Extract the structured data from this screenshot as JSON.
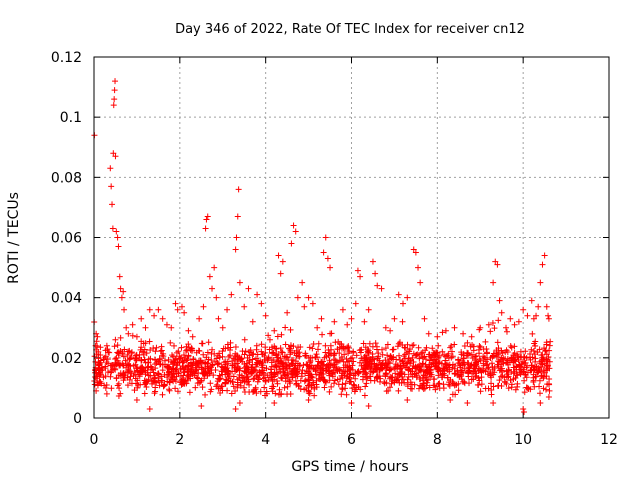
{
  "chart_data": {
    "type": "scatter",
    "title": "Day 346 of 2022, Rate Of TEC Index for receiver cn12",
    "xlabel": "GPS time / hours",
    "ylabel": "ROTI / TECUs",
    "xlim": [
      0,
      12
    ],
    "ylim": [
      0,
      0.12
    ],
    "xticks": [
      0,
      2,
      4,
      6,
      8,
      10,
      12
    ],
    "xtick_labels": [
      "0",
      "2",
      "4",
      "6",
      "8",
      "10",
      "12"
    ],
    "yticks": [
      0,
      0.02,
      0.04,
      0.06,
      0.08,
      0.1,
      0.12
    ],
    "ytick_labels": [
      "0",
      "0.02",
      "0.04",
      "0.06",
      "0.08",
      "0.1",
      "0.12"
    ],
    "grid": true,
    "marker": "+",
    "series": [
      {
        "name": "ROTI",
        "color": "#ff0000",
        "points": [
          [
            0.01,
            0.094
          ],
          [
            0.05,
            0.028
          ],
          [
            0.08,
            0.027
          ],
          [
            0.1,
            0.022
          ],
          [
            0.12,
            0.018
          ],
          [
            0.15,
            0.012
          ],
          [
            0.2,
            0.016
          ],
          [
            0.25,
            0.02
          ],
          [
            0.3,
            0.024
          ],
          [
            0.38,
            0.083
          ],
          [
            0.4,
            0.077
          ],
          [
            0.42,
            0.071
          ],
          [
            0.44,
            0.063
          ],
          [
            0.45,
            0.088
          ],
          [
            0.46,
            0.104
          ],
          [
            0.47,
            0.106
          ],
          [
            0.48,
            0.109
          ],
          [
            0.49,
            0.112
          ],
          [
            0.5,
            0.087
          ],
          [
            0.52,
            0.062
          ],
          [
            0.55,
            0.06
          ],
          [
            0.57,
            0.057
          ],
          [
            0.6,
            0.047
          ],
          [
            0.62,
            0.043
          ],
          [
            0.65,
            0.04
          ],
          [
            0.68,
            0.042
          ],
          [
            0.7,
            0.036
          ],
          [
            0.75,
            0.03
          ],
          [
            0.8,
            0.028
          ],
          [
            0.9,
            0.031
          ],
          [
            1.0,
            0.027
          ],
          [
            1.1,
            0.033
          ],
          [
            1.2,
            0.03
          ],
          [
            1.3,
            0.036
          ],
          [
            1.4,
            0.034
          ],
          [
            1.5,
            0.036
          ],
          [
            1.6,
            0.033
          ],
          [
            1.7,
            0.031
          ],
          [
            1.8,
            0.03
          ],
          [
            1.9,
            0.038
          ],
          [
            1.95,
            0.036
          ],
          [
            2.05,
            0.037
          ],
          [
            2.1,
            0.035
          ],
          [
            2.2,
            0.029
          ],
          [
            2.3,
            0.027
          ],
          [
            2.45,
            0.033
          ],
          [
            2.55,
            0.037
          ],
          [
            2.6,
            0.063
          ],
          [
            2.62,
            0.066
          ],
          [
            2.65,
            0.067
          ],
          [
            2.7,
            0.047
          ],
          [
            2.75,
            0.043
          ],
          [
            2.8,
            0.05
          ],
          [
            2.85,
            0.04
          ],
          [
            2.9,
            0.033
          ],
          [
            3.0,
            0.03
          ],
          [
            3.1,
            0.036
          ],
          [
            3.2,
            0.041
          ],
          [
            3.3,
            0.056
          ],
          [
            3.32,
            0.06
          ],
          [
            3.35,
            0.067
          ],
          [
            3.37,
            0.076
          ],
          [
            3.4,
            0.045
          ],
          [
            3.5,
            0.037
          ],
          [
            3.6,
            0.043
          ],
          [
            3.7,
            0.032
          ],
          [
            3.8,
            0.041
          ],
          [
            3.9,
            0.038
          ],
          [
            4.0,
            0.034
          ],
          [
            4.1,
            0.026
          ],
          [
            4.2,
            0.029
          ],
          [
            4.3,
            0.054
          ],
          [
            4.35,
            0.048
          ],
          [
            4.4,
            0.052
          ],
          [
            4.5,
            0.035
          ],
          [
            4.6,
            0.058
          ],
          [
            4.65,
            0.064
          ],
          [
            4.7,
            0.062
          ],
          [
            4.75,
            0.04
          ],
          [
            4.85,
            0.045
          ],
          [
            4.9,
            0.037
          ],
          [
            5.0,
            0.04
          ],
          [
            5.1,
            0.038
          ],
          [
            5.2,
            0.03
          ],
          [
            5.3,
            0.033
          ],
          [
            5.35,
            0.055
          ],
          [
            5.4,
            0.06
          ],
          [
            5.45,
            0.053
          ],
          [
            5.5,
            0.05
          ],
          [
            5.6,
            0.032
          ],
          [
            5.8,
            0.036
          ],
          [
            5.9,
            0.031
          ],
          [
            6.0,
            0.033
          ],
          [
            6.1,
            0.038
          ],
          [
            6.15,
            0.049
          ],
          [
            6.2,
            0.047
          ],
          [
            6.3,
            0.032
          ],
          [
            6.4,
            0.036
          ],
          [
            6.5,
            0.052
          ],
          [
            6.55,
            0.048
          ],
          [
            6.6,
            0.044
          ],
          [
            6.7,
            0.043
          ],
          [
            6.8,
            0.03
          ],
          [
            6.9,
            0.029
          ],
          [
            7.0,
            0.033
          ],
          [
            7.1,
            0.041
          ],
          [
            7.2,
            0.038
          ],
          [
            7.3,
            0.04
          ],
          [
            7.45,
            0.056
          ],
          [
            7.5,
            0.055
          ],
          [
            7.55,
            0.05
          ],
          [
            7.6,
            0.045
          ],
          [
            7.7,
            0.033
          ],
          [
            7.8,
            0.028
          ],
          [
            8.0,
            0.027
          ],
          [
            8.2,
            0.029
          ],
          [
            8.4,
            0.03
          ],
          [
            8.6,
            0.028
          ],
          [
            8.8,
            0.027
          ],
          [
            9.0,
            0.03
          ],
          [
            9.2,
            0.031
          ],
          [
            9.3,
            0.045
          ],
          [
            9.35,
            0.052
          ],
          [
            9.4,
            0.051
          ],
          [
            9.45,
            0.039
          ],
          [
            9.5,
            0.035
          ],
          [
            9.6,
            0.03
          ],
          [
            9.7,
            0.033
          ],
          [
            9.8,
            0.031
          ],
          [
            9.9,
            0.032
          ],
          [
            10.0,
            0.036
          ],
          [
            10.1,
            0.034
          ],
          [
            10.2,
            0.039
          ],
          [
            10.25,
            0.033
          ],
          [
            10.3,
            0.034
          ],
          [
            10.35,
            0.037
          ],
          [
            10.4,
            0.045
          ],
          [
            10.45,
            0.051
          ],
          [
            10.5,
            0.054
          ],
          [
            10.55,
            0.037
          ],
          [
            10.58,
            0.034
          ],
          [
            10.6,
            0.033
          ],
          [
            0.3,
            0.008
          ],
          [
            1.0,
            0.006
          ],
          [
            1.3,
            0.003
          ],
          [
            2.5,
            0.004
          ],
          [
            3.3,
            0.003
          ],
          [
            3.4,
            0.005
          ],
          [
            4.2,
            0.005
          ],
          [
            5.0,
            0.006
          ],
          [
            6.0,
            0.005
          ],
          [
            6.4,
            0.004
          ],
          [
            7.3,
            0.006
          ],
          [
            8.3,
            0.006
          ],
          [
            8.7,
            0.005
          ],
          [
            9.3,
            0.005
          ],
          [
            10.0,
            0.003
          ],
          [
            10.02,
            0.002
          ],
          [
            10.4,
            0.005
          ],
          [
            10.6,
            0.007
          ]
        ]
      }
    ]
  }
}
